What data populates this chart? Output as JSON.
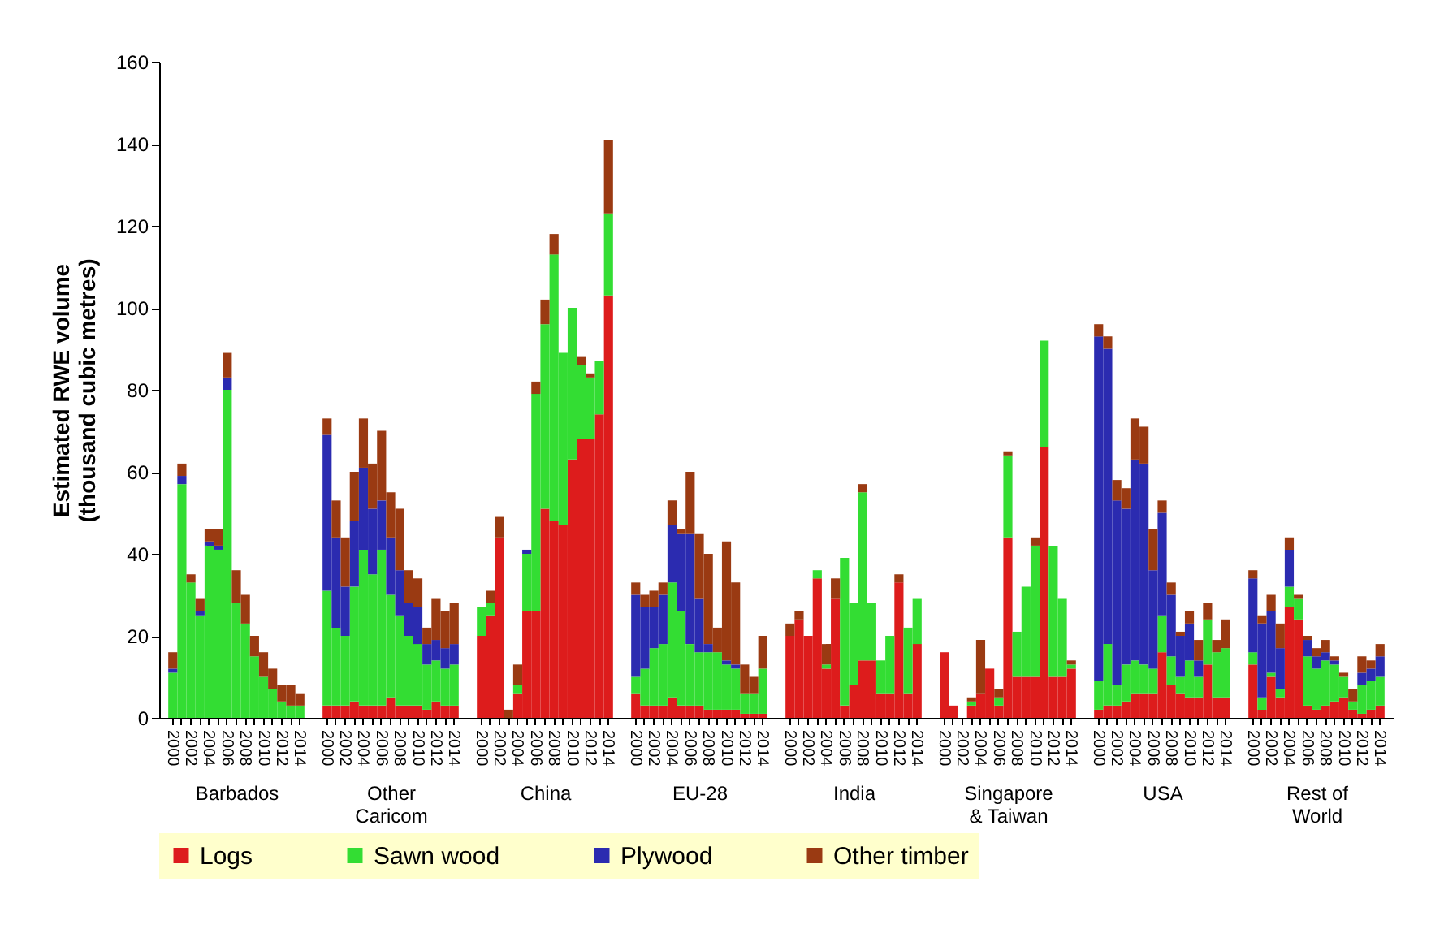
{
  "chart_data": [
    {
      "type": "bar",
      "stacked": true,
      "xlabel": "Barbados",
      "ylabel": "Estimated RWE volume\n(thousand cubic metres)",
      "ylim": [
        0,
        160
      ],
      "yticks": [
        0,
        20,
        40,
        60,
        80,
        100,
        120,
        140,
        160
      ],
      "legend": "bottom",
      "categories": [
        "2000",
        null,
        "2002",
        null,
        "2004",
        null,
        "2006",
        null,
        "2008",
        null,
        "2010",
        null,
        "2012",
        null,
        "2014"
      ],
      "series": [
        {
          "name": "Logs",
          "color": "#dd1c1c",
          "values": [
            0,
            0,
            0,
            0,
            0,
            0,
            0,
            0,
            0,
            0,
            0,
            0,
            0,
            0,
            0
          ]
        },
        {
          "name": "Sawn wood",
          "color": "#33dd33",
          "values": [
            11,
            57,
            33,
            25,
            42,
            41,
            80,
            28,
            23,
            15,
            10,
            7,
            4,
            3,
            3
          ]
        },
        {
          "name": "Plywood",
          "color": "#2b2bb0",
          "values": [
            1,
            2,
            0,
            1,
            1,
            1,
            3,
            0,
            0,
            0,
            0,
            0,
            0,
            0,
            0
          ]
        },
        {
          "name": "Other timber",
          "color": "#9a3a12",
          "values": [
            4,
            3,
            2,
            3,
            3,
            4,
            6,
            8,
            7,
            5,
            6,
            5,
            4,
            5,
            3
          ]
        }
      ]
    },
    {
      "type": "bar",
      "stacked": true,
      "xlabel": "Other Caricom",
      "ylim": [
        0,
        160
      ],
      "yticks": [
        0,
        20,
        40,
        60,
        80,
        100,
        120,
        140,
        160
      ],
      "tick_labels": "x",
      "categories": [
        "2000",
        null,
        "2002",
        null,
        "2004",
        null,
        "2006",
        null,
        "2008",
        null,
        "2010",
        null,
        "2012",
        null,
        "2014"
      ],
      "series": [
        {
          "color": "#dd1c1c",
          "values": [
            3,
            3,
            3,
            4,
            3,
            3,
            3,
            5,
            3,
            3,
            3,
            2,
            4,
            3,
            3
          ]
        },
        {
          "color": "#33dd33",
          "values": [
            28,
            19,
            17,
            28,
            38,
            32,
            38,
            25,
            22,
            17,
            15,
            11,
            10,
            9,
            10
          ]
        },
        {
          "color": "#2b2bb0",
          "values": [
            38,
            22,
            12,
            16,
            20,
            16,
            12,
            14,
            11,
            8,
            9,
            5,
            5,
            5,
            5
          ]
        },
        {
          "color": "#9a3a12",
          "values": [
            4,
            9,
            12,
            12,
            12,
            11,
            17,
            11,
            15,
            8,
            7,
            4,
            10,
            9,
            10
          ]
        }
      ]
    },
    {
      "type": "bar",
      "stacked": true,
      "xlabel": "China",
      "ylim": [
        0,
        160
      ],
      "yticks": [
        0,
        20,
        40,
        60,
        80,
        100,
        120,
        140,
        160
      ],
      "tick_labels": "x",
      "categories": [
        "2000",
        null,
        "2002",
        null,
        "2004",
        null,
        "2006",
        null,
        "2008",
        null,
        "2010",
        null,
        "2012",
        null,
        "2014"
      ],
      "series": [
        {
          "color": "#dd1c1c",
          "values": [
            20,
            25,
            44,
            0,
            6,
            26,
            26,
            51,
            48,
            47,
            63,
            68,
            68,
            74,
            103
          ]
        },
        {
          "color": "#33dd33",
          "values": [
            7,
            3,
            0,
            0,
            2,
            14,
            53,
            45,
            65,
            42,
            37,
            18,
            15,
            13,
            20
          ]
        },
        {
          "color": "#2b2bb0",
          "values": [
            0,
            0,
            0,
            0,
            0,
            1,
            0,
            0,
            0,
            0,
            0,
            0,
            0,
            0,
            0
          ]
        },
        {
          "color": "#9a3a12",
          "values": [
            0,
            3,
            5,
            2,
            5,
            0,
            3,
            6,
            5,
            0,
            0,
            2,
            1,
            0,
            18
          ]
        }
      ]
    },
    {
      "type": "bar",
      "stacked": true,
      "xlabel": "EU-28",
      "ylim": [
        0,
        160
      ],
      "yticks": [
        0,
        20,
        40,
        60,
        80,
        100,
        120,
        140,
        160
      ],
      "tick_labels": "x",
      "categories": [
        "2000",
        null,
        "2002",
        null,
        "2004",
        null,
        "2006",
        null,
        "2008",
        null,
        "2010",
        null,
        "2012",
        null,
        "2014"
      ],
      "series": [
        {
          "color": "#dd1c1c",
          "values": [
            6,
            3,
            3,
            3,
            5,
            3,
            3,
            3,
            2,
            2,
            2,
            2,
            1,
            1,
            1
          ]
        },
        {
          "color": "#33dd33",
          "values": [
            4,
            9,
            14,
            15,
            28,
            23,
            15,
            13,
            14,
            14,
            11,
            10,
            5,
            5,
            11
          ]
        },
        {
          "color": "#2b2bb0",
          "values": [
            20,
            15,
            10,
            12,
            14,
            19,
            27,
            13,
            2,
            0,
            1,
            1,
            0,
            0,
            0
          ]
        },
        {
          "color": "#9a3a12",
          "values": [
            3,
            3,
            4,
            3,
            6,
            1,
            15,
            16,
            22,
            6,
            29,
            20,
            7,
            4,
            8
          ]
        }
      ]
    },
    {
      "type": "bar",
      "stacked": true,
      "xlabel": "India",
      "ylim": [
        0,
        160
      ],
      "yticks": [
        0,
        20,
        40,
        60,
        80,
        100,
        120,
        140,
        160
      ],
      "tick_labels": "x",
      "categories": [
        "2000",
        null,
        "2002",
        null,
        "2004",
        null,
        "2006",
        null,
        "2008",
        null,
        "2010",
        null,
        "2012",
        null,
        "2014"
      ],
      "series": [
        {
          "color": "#dd1c1c",
          "values": [
            20,
            24,
            20,
            34,
            12,
            29,
            3,
            8,
            14,
            14,
            6,
            6,
            33,
            6,
            18
          ]
        },
        {
          "color": "#33dd33",
          "values": [
            0,
            0,
            0,
            2,
            1,
            0,
            36,
            20,
            41,
            14,
            8,
            14,
            0,
            16,
            11
          ]
        },
        {
          "color": "#2b2bb0",
          "values": [
            0,
            0,
            0,
            0,
            0,
            0,
            0,
            0,
            0,
            0,
            0,
            0,
            0,
            0,
            0
          ]
        },
        {
          "color": "#9a3a12",
          "values": [
            3,
            2,
            0,
            0,
            5,
            5,
            0,
            0,
            2,
            0,
            0,
            0,
            2,
            0,
            0
          ]
        }
      ]
    },
    {
      "type": "bar",
      "stacked": true,
      "xlabel": "Singapore & Taiwan",
      "ylim": [
        0,
        160
      ],
      "yticks": [
        0,
        20,
        40,
        60,
        80,
        100,
        120,
        140,
        160
      ],
      "tick_labels": "x",
      "categories": [
        "2000",
        null,
        "2002",
        null,
        "2004",
        null,
        "2006",
        null,
        "2008",
        null,
        "2010",
        null,
        "2012",
        null,
        "2014"
      ],
      "series": [
        {
          "color": "#dd1c1c",
          "values": [
            16,
            3,
            0,
            3,
            6,
            12,
            3,
            44,
            10,
            10,
            10,
            66,
            10,
            10,
            12
          ]
        },
        {
          "color": "#33dd33",
          "values": [
            0,
            0,
            0,
            1,
            0,
            0,
            2,
            20,
            11,
            22,
            32,
            26,
            32,
            19,
            1
          ]
        },
        {
          "color": "#2b2bb0",
          "values": [
            0,
            0,
            0,
            0,
            0,
            0,
            0,
            0,
            0,
            0,
            0,
            0,
            0,
            0,
            0
          ]
        },
        {
          "color": "#9a3a12",
          "values": [
            0,
            0,
            0,
            1,
            13,
            0,
            2,
            1,
            0,
            0,
            2,
            0,
            0,
            0,
            1
          ]
        }
      ]
    },
    {
      "type": "bar",
      "stacked": true,
      "xlabel": "USA",
      "ylim": [
        0,
        160
      ],
      "yticks": [
        0,
        20,
        40,
        60,
        80,
        100,
        120,
        140,
        160
      ],
      "tick_labels": "x",
      "categories": [
        "2000",
        null,
        "2002",
        null,
        "2004",
        null,
        "2006",
        null,
        "2008",
        null,
        "2010",
        null,
        "2012",
        null,
        "2014"
      ],
      "series": [
        {
          "color": "#dd1c1c",
          "values": [
            2,
            3,
            3,
            4,
            6,
            6,
            6,
            16,
            8,
            6,
            5,
            5,
            13,
            5,
            5
          ]
        },
        {
          "color": "#33dd33",
          "values": [
            7,
            15,
            5,
            9,
            8,
            7,
            6,
            9,
            7,
            4,
            9,
            5,
            11,
            11,
            12
          ]
        },
        {
          "color": "#2b2bb0",
          "values": [
            84,
            72,
            45,
            38,
            49,
            49,
            24,
            25,
            15,
            10,
            9,
            4,
            0,
            0,
            0
          ]
        },
        {
          "color": "#9a3a12",
          "values": [
            3,
            3,
            5,
            5,
            10,
            9,
            10,
            3,
            3,
            1,
            3,
            5,
            4,
            3,
            7
          ]
        }
      ]
    },
    {
      "type": "bar",
      "stacked": true,
      "xlabel": "Rest of World",
      "ylim": [
        0,
        160
      ],
      "yticks": [
        0,
        20,
        40,
        60,
        80,
        100,
        120,
        140,
        160
      ],
      "tick_labels": "x",
      "categories": [
        "2000",
        null,
        "2002",
        null,
        "2004",
        null,
        "2006",
        null,
        "2008",
        null,
        "2010",
        null,
        "2012",
        null,
        "2014"
      ],
      "series": [
        {
          "color": "#dd1c1c",
          "values": [
            13,
            2,
            10,
            5,
            27,
            24,
            3,
            2,
            3,
            4,
            5,
            2,
            1,
            2,
            3
          ]
        },
        {
          "color": "#33dd33",
          "values": [
            3,
            3,
            1,
            2,
            5,
            5,
            12,
            10,
            11,
            9,
            5,
            2,
            7,
            7,
            7
          ]
        },
        {
          "color": "#2b2bb0",
          "values": [
            18,
            18,
            15,
            10,
            9,
            0,
            4,
            3,
            2,
            1,
            0,
            0,
            3,
            3,
            5
          ]
        },
        {
          "color": "#9a3a12",
          "values": [
            2,
            2,
            4,
            6,
            3,
            1,
            1,
            2,
            3,
            1,
            1,
            3,
            4,
            2,
            3
          ]
        }
      ]
    }
  ]
}
